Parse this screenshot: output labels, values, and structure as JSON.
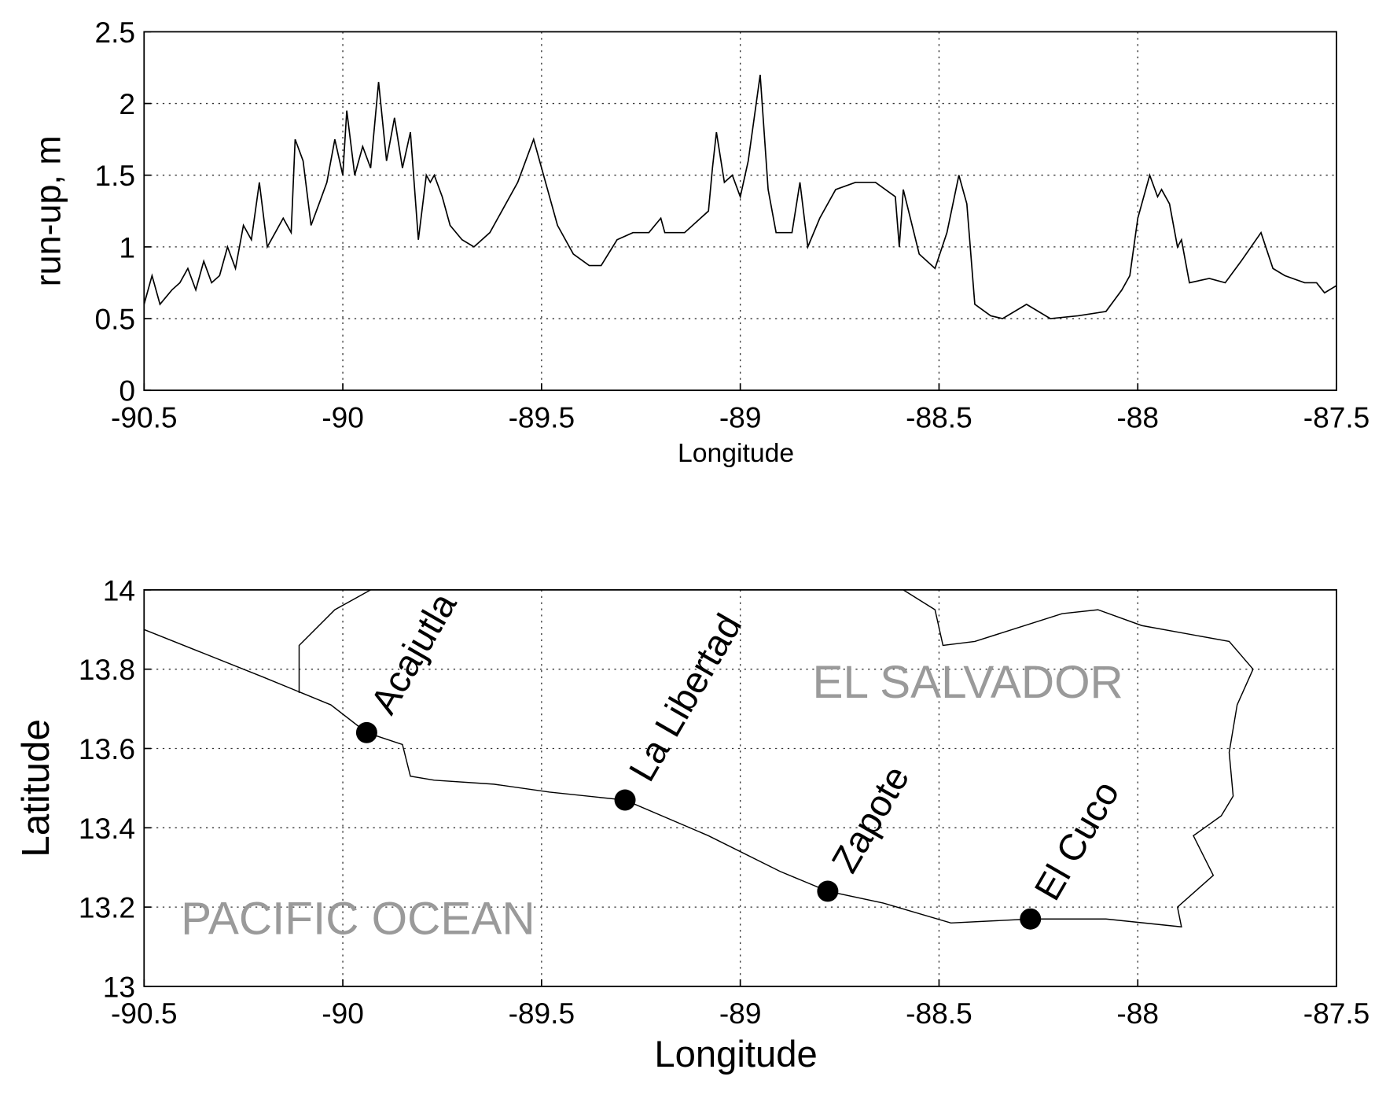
{
  "chart_data": [
    {
      "type": "line",
      "xlabel": "Longitude",
      "ylabel": "run-up, m",
      "color": "#000000",
      "grid": true,
      "xlim": [
        -90.5,
        -87.5
      ],
      "ylim": [
        0,
        2.5
      ],
      "xticks": [
        -90.5,
        -90,
        -89.5,
        -89,
        -88.5,
        -88,
        -87.5
      ],
      "yticks": [
        0,
        0.5,
        1,
        1.5,
        2,
        2.5
      ],
      "x": [
        -90.5,
        -90.48,
        -90.46,
        -90.43,
        -90.41,
        -90.39,
        -90.37,
        -90.35,
        -90.33,
        -90.31,
        -90.29,
        -90.27,
        -90.25,
        -90.23,
        -90.21,
        -90.19,
        -90.17,
        -90.15,
        -90.13,
        -90.12,
        -90.1,
        -90.08,
        -90.06,
        -90.04,
        -90.02,
        -90.0,
        -89.99,
        -89.97,
        -89.95,
        -89.93,
        -89.91,
        -89.89,
        -89.87,
        -89.85,
        -89.83,
        -89.81,
        -89.79,
        -89.78,
        -89.77,
        -89.75,
        -89.73,
        -89.7,
        -89.67,
        -89.65,
        -89.63,
        -89.6,
        -89.56,
        -89.52,
        -89.49,
        -89.46,
        -89.42,
        -89.38,
        -89.35,
        -89.31,
        -89.27,
        -89.23,
        -89.2,
        -89.19,
        -89.14,
        -89.1,
        -89.08,
        -89.07,
        -89.06,
        -89.04,
        -89.02,
        -89.0,
        -88.98,
        -88.95,
        -88.93,
        -88.91,
        -88.87,
        -88.85,
        -88.83,
        -88.8,
        -88.76,
        -88.71,
        -88.66,
        -88.61,
        -88.6,
        -88.59,
        -88.55,
        -88.51,
        -88.48,
        -88.45,
        -88.43,
        -88.41,
        -88.37,
        -88.34,
        -88.28,
        -88.22,
        -88.15,
        -88.08,
        -88.04,
        -88.02,
        -88.0,
        -87.97,
        -87.95,
        -87.94,
        -87.92,
        -87.9,
        -87.89,
        -87.87,
        -87.82,
        -87.78,
        -87.74,
        -87.69,
        -87.66,
        -87.63,
        -87.58,
        -87.55,
        -87.53,
        -87.5
      ],
      "values": [
        0.6,
        0.8,
        0.6,
        0.7,
        0.75,
        0.85,
        0.7,
        0.9,
        0.75,
        0.8,
        1.0,
        0.85,
        1.15,
        1.05,
        1.45,
        1.0,
        1.1,
        1.2,
        1.1,
        1.75,
        1.6,
        1.15,
        1.3,
        1.45,
        1.75,
        1.5,
        1.95,
        1.5,
        1.7,
        1.55,
        2.15,
        1.6,
        1.9,
        1.55,
        1.8,
        1.05,
        1.5,
        1.45,
        1.5,
        1.35,
        1.15,
        1.05,
        1.0,
        1.05,
        1.1,
        1.25,
        1.45,
        1.75,
        1.45,
        1.15,
        0.95,
        0.87,
        0.87,
        1.05,
        1.1,
        1.1,
        1.2,
        1.1,
        1.1,
        1.2,
        1.25,
        1.55,
        1.8,
        1.45,
        1.5,
        1.35,
        1.6,
        2.2,
        1.4,
        1.1,
        1.1,
        1.45,
        1.0,
        1.2,
        1.4,
        1.45,
        1.45,
        1.35,
        1.0,
        1.4,
        0.95,
        0.85,
        1.1,
        1.5,
        1.3,
        0.6,
        0.52,
        0.5,
        0.6,
        0.5,
        0.52,
        0.55,
        0.7,
        0.8,
        1.2,
        1.5,
        1.35,
        1.4,
        1.3,
        1.0,
        1.05,
        0.75,
        0.78,
        0.75,
        0.9,
        1.1,
        0.85,
        0.8,
        0.75,
        0.75,
        0.68,
        0.73
      ]
    },
    {
      "type": "scatter",
      "xlabel": "Longitude",
      "ylabel": "Latitude",
      "color": "#000000",
      "grid": true,
      "xlim": [
        -90.5,
        -87.5
      ],
      "ylim": [
        13,
        14
      ],
      "xticks": [
        -90.5,
        -90,
        -89.5,
        -89,
        -88.5,
        -88,
        -87.5
      ],
      "yticks": [
        13,
        13.2,
        13.4,
        13.6,
        13.8,
        14
      ],
      "annotations": [
        "EL SALVADOR",
        "PACIFIC OCEAN"
      ],
      "points": {
        "labels": [
          "Acajutla",
          "La Libertad",
          "Zapote",
          "El Cuco"
        ],
        "x": [
          -89.94,
          -89.29,
          -88.78,
          -88.27
        ],
        "y": [
          13.64,
          13.47,
          13.24,
          13.17
        ]
      },
      "outline": {
        "x": [
          -90.5,
          -90.2,
          -90.03,
          -89.94,
          -89.85,
          -89.83,
          -89.77,
          -89.62,
          -89.48,
          -89.29,
          -89.08,
          -88.9,
          -88.78,
          -88.64,
          -88.47,
          -88.27,
          -88.08,
          -87.89,
          -87.9,
          -87.81,
          -87.86,
          -87.79,
          -87.76,
          -87.77,
          -87.75,
          -87.71,
          -87.77,
          -87.99,
          -88.1,
          -88.19,
          -88.41,
          -88.49,
          -88.51,
          -88.59,
          null,
          -90.11,
          -90.11,
          -90.02,
          -89.93
        ],
        "y": [
          13.9,
          13.78,
          13.71,
          13.64,
          13.61,
          13.53,
          13.52,
          13.51,
          13.49,
          13.47,
          13.38,
          13.29,
          13.24,
          13.21,
          13.16,
          13.17,
          13.17,
          13.15,
          13.2,
          13.28,
          13.38,
          13.43,
          13.48,
          13.59,
          13.71,
          13.8,
          13.87,
          13.91,
          13.95,
          13.94,
          13.87,
          13.86,
          13.95,
          14.0,
          null,
          13.74,
          13.86,
          13.95,
          14.0
        ]
      }
    }
  ]
}
